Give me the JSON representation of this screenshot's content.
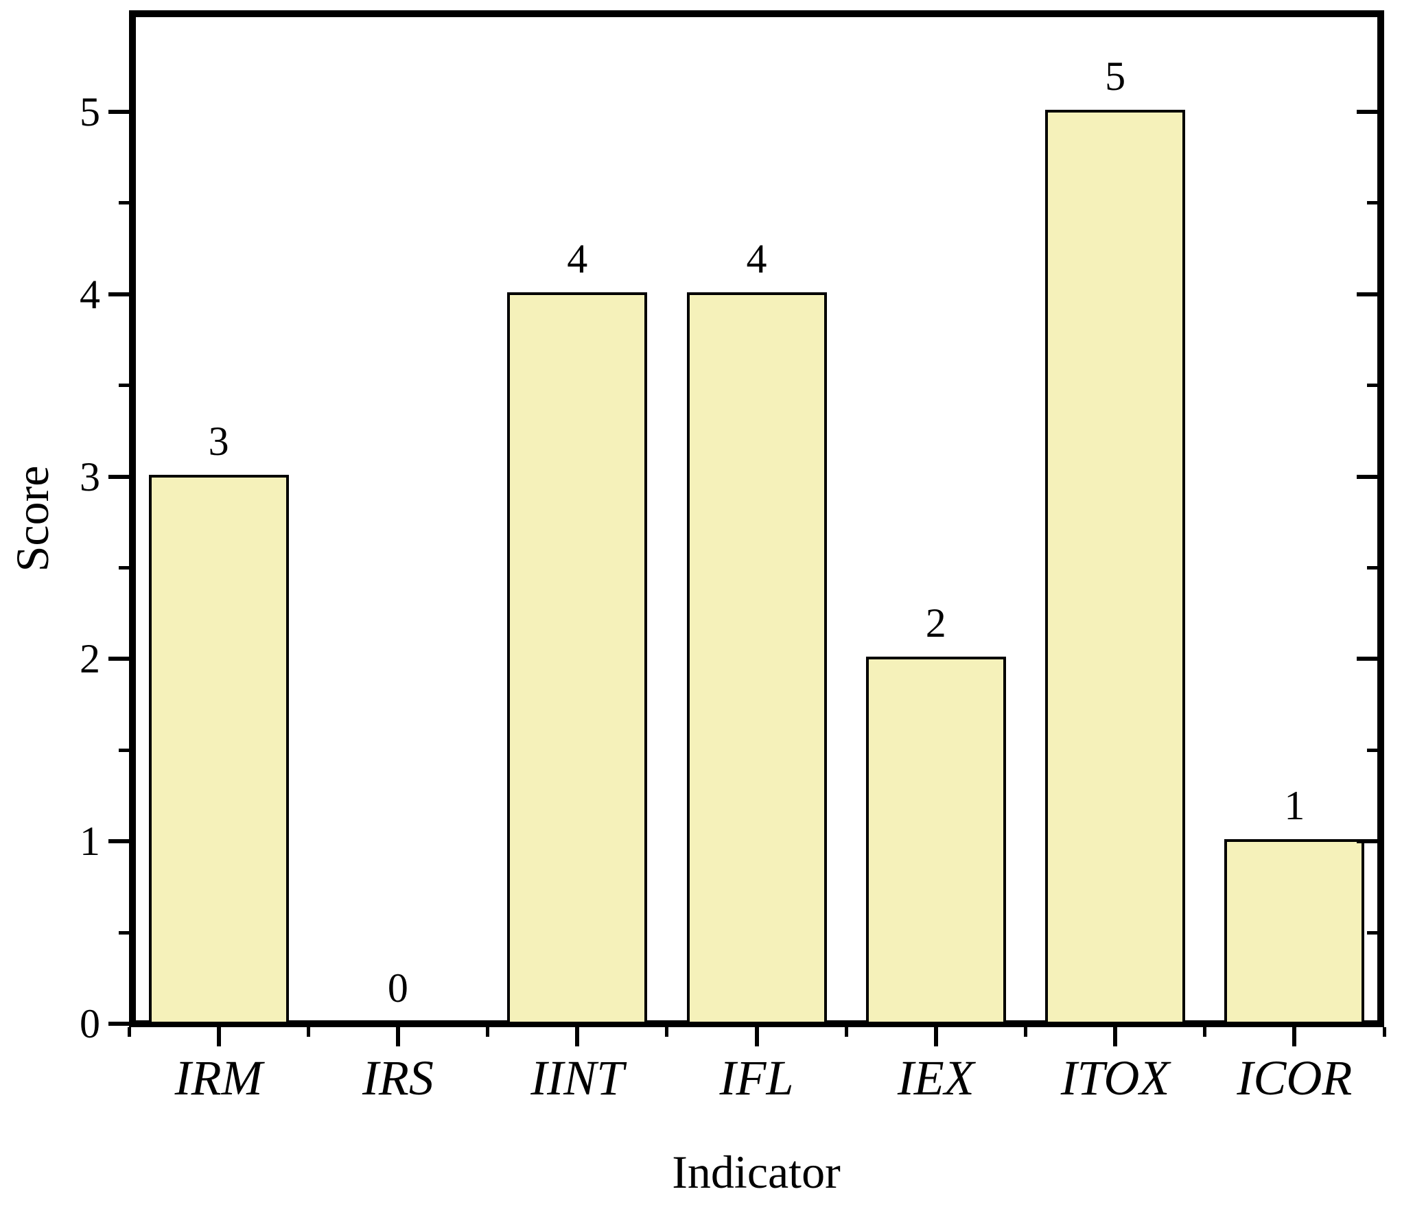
{
  "chart_data": {
    "type": "bar",
    "title": "",
    "categories": [
      "IRM",
      "IRS",
      "IINT",
      "IFL",
      "IEX",
      "ITOX",
      "ICOR"
    ],
    "values": [
      3,
      0,
      4,
      4,
      2,
      5,
      1
    ],
    "data_labels": [
      "3",
      "0",
      "4",
      "4",
      "2",
      "5",
      "1"
    ],
    "xlabel": "Indicator",
    "ylabel": "Score",
    "ylim": [
      0,
      5.5
    ],
    "y_major_ticks": [
      0,
      1,
      2,
      3,
      4,
      5
    ],
    "y_tick_labels": [
      "0",
      "1",
      "2",
      "3",
      "4",
      "5"
    ],
    "y_minor_ticks": [
      0.5,
      1.5,
      2.5,
      3.5,
      4.5
    ],
    "grid": false,
    "legend": false,
    "colors": {
      "bar_fill": "#F5F1BA",
      "bar_border": "#000000",
      "axis": "#000000",
      "background": "#FFFFFF"
    }
  }
}
